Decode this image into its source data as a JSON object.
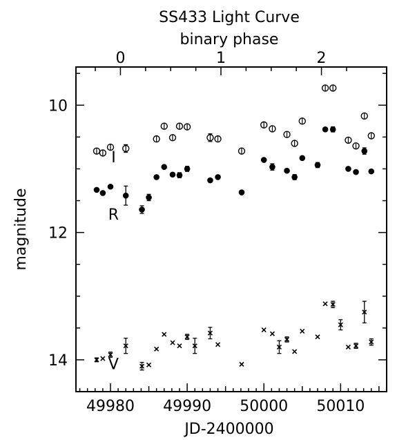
{
  "chart_data": {
    "type": "scatter",
    "title": "SS433  Light Curve",
    "top_axis_label": "binary phase",
    "xlabel": "JD-2400000",
    "ylabel": "magnitude",
    "xlim": [
      49975.5,
      50016
    ],
    "ylim": [
      14.5,
      9.4
    ],
    "y_inverted": true,
    "x_ticks": [
      49980,
      49990,
      50000,
      50010
    ],
    "x_tick_labels": [
      "49980",
      "49990",
      "50000",
      "50010"
    ],
    "y_ticks": [
      10,
      12,
      14
    ],
    "y_tick_labels": [
      "10",
      "12",
      "14"
    ],
    "top_ticks_jd": [
      49981.3,
      49994.4,
      50007.5
    ],
    "top_tick_labels": [
      "0",
      "1",
      "2"
    ],
    "grid": false,
    "legend": "none",
    "band_labels": [
      {
        "text": "I",
        "x": 49980.4,
        "y": 10.9
      },
      {
        "text": "R",
        "x": 49980.4,
        "y": 11.8
      },
      {
        "text": "V",
        "x": 49980.4,
        "y": 14.15
      }
    ],
    "series": [
      {
        "name": "I",
        "marker": "circle-cross",
        "x": [
          49978.2,
          49979.0,
          49980.0,
          49982.0,
          49986.0,
          49987.0,
          49988.1,
          49989.0,
          49990.0,
          49993.0,
          49994.0,
          49997.1,
          50000.0,
          50001.1,
          50003.0,
          50004.0,
          50005.0,
          50008.0,
          50009.0,
          50011.0,
          50012.0,
          50013.1,
          50014.0
        ],
        "y": [
          10.72,
          10.75,
          10.66,
          10.68,
          10.53,
          10.33,
          10.51,
          10.33,
          10.34,
          10.51,
          10.53,
          10.72,
          10.31,
          10.37,
          10.46,
          10.6,
          10.25,
          9.73,
          9.73,
          10.55,
          10.64,
          10.17,
          10.48
        ],
        "err": [
          0,
          0,
          0,
          0.06,
          0,
          0,
          0,
          0,
          0,
          0.06,
          0,
          0,
          0,
          0,
          0,
          0,
          0,
          0,
          0,
          0,
          0,
          0,
          0
        ]
      },
      {
        "name": "R",
        "marker": "filled-circle",
        "x": [
          49978.2,
          49979.0,
          49980.0,
          49982.0,
          49984.1,
          49985.0,
          49986.0,
          49987.0,
          49988.1,
          49989.0,
          49990.0,
          49993.0,
          49994.0,
          49997.1,
          50000.0,
          50001.1,
          50003.0,
          50004.0,
          50005.0,
          50007.0,
          50008.0,
          50009.0,
          50011.0,
          50012.0,
          50013.1,
          50014.0
        ],
        "y": [
          11.33,
          11.38,
          11.28,
          11.42,
          11.64,
          11.45,
          11.13,
          10.97,
          11.09,
          11.1,
          11.0,
          11.18,
          11.13,
          11.37,
          10.86,
          10.97,
          11.03,
          11.13,
          10.83,
          10.94,
          10.38,
          10.38,
          11.0,
          11.05,
          10.72,
          11.04
        ],
        "err": [
          0,
          0,
          0,
          0.15,
          0.06,
          0.05,
          0,
          0,
          0,
          0.04,
          0.04,
          0,
          0,
          0,
          0,
          0.05,
          0,
          0.04,
          0,
          0.04,
          0,
          0.04,
          0,
          0,
          0.05,
          0
        ]
      },
      {
        "name": "V",
        "marker": "cross",
        "x": [
          49978.2,
          49979.0,
          49980.0,
          49982.0,
          49984.1,
          49985.0,
          49986.0,
          49987.0,
          49988.1,
          49989.0,
          49990.0,
          49991.0,
          49993.0,
          49994.0,
          49997.1,
          50000.0,
          50001.1,
          50002.0,
          50003.0,
          50004.0,
          50005.0,
          50007.0,
          50008.0,
          50009.0,
          50010.0,
          50011.0,
          50012.0,
          50013.1,
          50014.0
        ],
        "y": [
          14.0,
          13.98,
          13.92,
          13.78,
          14.1,
          14.08,
          13.83,
          13.6,
          13.73,
          13.78,
          13.64,
          13.78,
          13.58,
          13.76,
          14.07,
          13.53,
          13.59,
          13.8,
          13.68,
          13.87,
          13.55,
          13.64,
          13.12,
          13.13,
          13.45,
          13.8,
          13.78,
          13.25,
          13.72
        ],
        "err": [
          0.03,
          0,
          0.04,
          0.12,
          0.06,
          0,
          0,
          0,
          0,
          0,
          0.04,
          0.12,
          0.09,
          0,
          0,
          0,
          0,
          0.1,
          0.04,
          0,
          0,
          0,
          0,
          0.05,
          0.08,
          0,
          0.04,
          0.17,
          0.05
        ]
      }
    ]
  }
}
